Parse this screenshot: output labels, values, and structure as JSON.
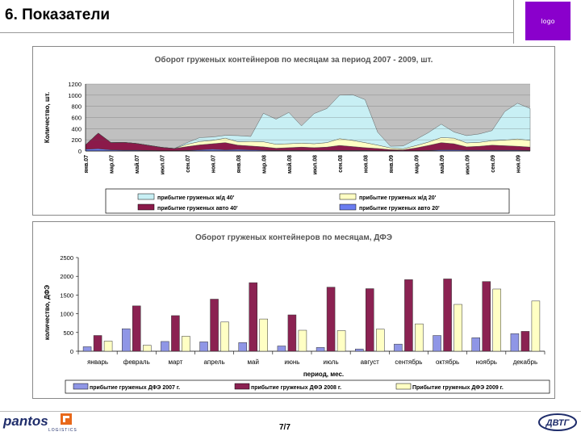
{
  "slide": {
    "title": "6. Показатели",
    "page": "7/7",
    "footer_left_logo": "pantos",
    "footer_left_logo_sub": "LOGISTICS",
    "footer_right_logo": "ДВТГ",
    "top_right_logo": "logo",
    "colors": {
      "logo_purple": "#8a00cc",
      "brand_navy": "#1f2d6b"
    }
  },
  "chart_data": [
    {
      "type": "area",
      "title": "Оборот груженых контейнеров по месяцам за период 2007 - 2009, шт.",
      "ylabel": "Количество, шт.",
      "xlabel": "",
      "ylim": [
        0,
        1200
      ],
      "yticks": [
        0,
        200,
        400,
        600,
        800,
        1000,
        1200
      ],
      "grid": true,
      "legend": "bottom",
      "stacked": true,
      "x_tick_labels": [
        "янв.07",
        "мар.07",
        "май.07",
        "июл.07",
        "сен.07",
        "ноя.07",
        "янв.08",
        "мар.08",
        "май.08",
        "июл.08",
        "сен.08",
        "ноя.08",
        "янв.09",
        "мар.09",
        "май.09",
        "июл.09",
        "сен.09",
        "ноя.09"
      ],
      "x": [
        "янв.07",
        "фев.07",
        "мар.07",
        "апр.07",
        "май.07",
        "июн.07",
        "июл.07",
        "авг.07",
        "сен.07",
        "окт.07",
        "ноя.07",
        "дек.07",
        "янв.08",
        "фев.08",
        "мар.08",
        "апр.08",
        "май.08",
        "июн.08",
        "июл.08",
        "авг.08",
        "сен.08",
        "окт.08",
        "ноя.08",
        "дек.08",
        "янв.09",
        "фев.09",
        "мар.09",
        "апр.09",
        "май.09",
        "июн.09",
        "июл.09",
        "авг.09",
        "сен.09",
        "окт.09",
        "ноя.09",
        "дек.09"
      ],
      "series": [
        {
          "name": "прибытие груженых авто 20'",
          "color": "#6a7cf0",
          "values": [
            30,
            40,
            20,
            15,
            15,
            10,
            5,
            5,
            10,
            20,
            30,
            20,
            25,
            20,
            15,
            10,
            10,
            10,
            10,
            10,
            10,
            10,
            10,
            5,
            5,
            5,
            5,
            10,
            20,
            20,
            15,
            15,
            15,
            15,
            15,
            10
          ]
        },
        {
          "name": "прибытие груженых авто 40'",
          "color": "#8b1a4a",
          "values": [
            80,
            280,
            130,
            140,
            120,
            90,
            60,
            40,
            70,
            90,
            100,
            130,
            80,
            70,
            60,
            40,
            50,
            60,
            50,
            60,
            90,
            70,
            50,
            40,
            20,
            15,
            50,
            90,
            130,
            110,
            60,
            70,
            90,
            80,
            70,
            60
          ]
        },
        {
          "name": "прибытие груженых ж/д 20'",
          "color": "#ffffc4",
          "values": [
            0,
            0,
            0,
            0,
            0,
            0,
            0,
            0,
            40,
            60,
            60,
            80,
            60,
            80,
            90,
            70,
            70,
            70,
            70,
            80,
            120,
            110,
            90,
            60,
            30,
            20,
            40,
            60,
            90,
            100,
            70,
            70,
            80,
            100,
            130,
            120
          ]
        },
        {
          "name": "прибытие груженых ж/д 40'",
          "color": "#c8eff4",
          "values": [
            0,
            0,
            0,
            0,
            0,
            0,
            0,
            0,
            30,
            70,
            60,
            50,
            110,
            90,
            510,
            450,
            560,
            310,
            540,
            610,
            780,
            820,
            770,
            230,
            30,
            50,
            110,
            170,
            240,
            110,
            130,
            150,
            180,
            510,
            640,
            570
          ]
        }
      ]
    },
    {
      "type": "bar",
      "title": "Оборот груженых контейнеров по месяцам, ДФЭ",
      "ylabel": "количество, ДФЭ",
      "xlabel": "период, мес.",
      "ylim": [
        0,
        2500
      ],
      "yticks": [
        0,
        500,
        1000,
        1500,
        2000,
        2500
      ],
      "grid": false,
      "legend": "bottom",
      "categories": [
        "январь",
        "февраль",
        "март",
        "апрель",
        "май",
        "июнь",
        "июль",
        "август",
        "сентябрь",
        "октябрь",
        "ноябрь",
        "декабрь"
      ],
      "series": [
        {
          "name": "прибытие груженых ДФЭ 2007 г.",
          "color": "#8f96e6",
          "values": [
            120,
            600,
            260,
            250,
            230,
            140,
            100,
            60,
            190,
            420,
            360,
            470
          ]
        },
        {
          "name": "прибытие груженых ДФЭ 2008 г.",
          "color": "#8b2252",
          "values": [
            420,
            1210,
            950,
            1390,
            1830,
            970,
            1710,
            1670,
            1910,
            1930,
            1860,
            530
          ]
        },
        {
          "name": "Прибытие груженых ДФЭ 2009 г.",
          "color": "#ffffc4",
          "values": [
            270,
            160,
            400,
            780,
            860,
            560,
            550,
            590,
            730,
            1250,
            1660,
            1340
          ]
        }
      ]
    }
  ]
}
